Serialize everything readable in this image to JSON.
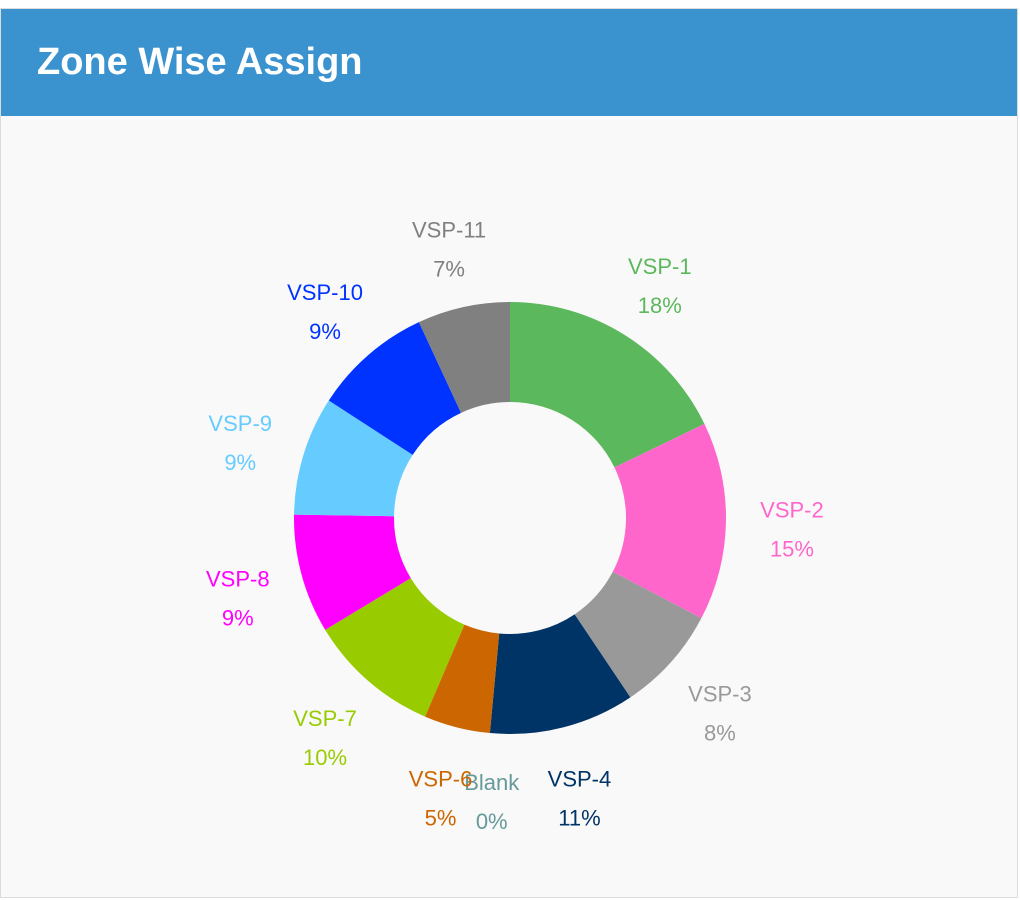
{
  "header": {
    "title": "Zone Wise Assign"
  },
  "chart_data": {
    "type": "pie",
    "variant": "donut",
    "title": "Zone Wise Assign",
    "legend": "none",
    "slices": [
      {
        "label": "VSP-1",
        "percent": 18,
        "percent_label": "18%",
        "color": "#5cb85c"
      },
      {
        "label": "VSP-2",
        "percent": 15,
        "percent_label": "15%",
        "color": "#ff66cc"
      },
      {
        "label": "VSP-3",
        "percent": 8,
        "percent_label": "8%",
        "color": "#999999"
      },
      {
        "label": "VSP-4",
        "percent": 11,
        "percent_label": "11%",
        "color": "#003366"
      },
      {
        "label": "Blank",
        "percent": 0,
        "percent_label": "0%",
        "color": "#669999"
      },
      {
        "label": "VSP-6",
        "percent": 5,
        "percent_label": "5%",
        "color": "#cc6600"
      },
      {
        "label": "VSP-7",
        "percent": 10,
        "percent_label": "10%",
        "color": "#99cc00"
      },
      {
        "label": "VSP-8",
        "percent": 9,
        "percent_label": "9%",
        "color": "#ff00ff"
      },
      {
        "label": "VSP-9",
        "percent": 9,
        "percent_label": "9%",
        "color": "#66ccff"
      },
      {
        "label": "VSP-10",
        "percent": 9,
        "percent_label": "9%",
        "color": "#0033ff"
      },
      {
        "label": "VSP-11",
        "percent": 7,
        "percent_label": "7%",
        "color": "#808080"
      }
    ]
  }
}
